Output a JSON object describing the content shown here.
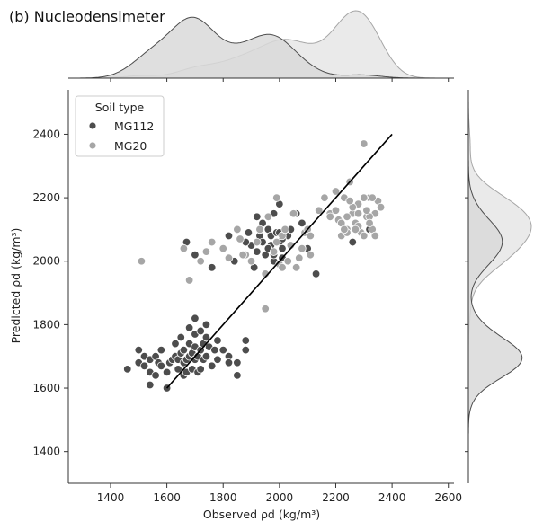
{
  "title": "(b) Nucleodensimeter",
  "chart_data": {
    "type": "scatter",
    "title": "(b) Nucleodensimeter",
    "xlabel": "Observed ρd (kg/m³)",
    "ylabel": "Predicted ρd (kg/m³)",
    "xlim": [
      1250,
      2620
    ],
    "ylim": [
      1300,
      2540
    ],
    "xticks": [
      "1400",
      "1600",
      "1800",
      "2000",
      "2200",
      "2400",
      "2600"
    ],
    "yticks": [
      "1400",
      "1600",
      "1800",
      "2000",
      "2200",
      "2400"
    ],
    "xtick_values": [
      1400,
      1600,
      1800,
      2000,
      2200,
      2400,
      2600
    ],
    "ytick_values": [
      1400,
      1600,
      1800,
      2000,
      2200,
      2400
    ],
    "grid": false,
    "legend": {
      "title": "Soil type",
      "placement": "top-left"
    },
    "fit_line": {
      "x": [
        1600,
        2400
      ],
      "y": [
        1600,
        2400
      ],
      "color": "#000000"
    },
    "marginals": "kde",
    "series": [
      {
        "name": "MG112",
        "color": "#4d4d4d",
        "x": [
          1460,
          1500,
          1500,
          1520,
          1520,
          1540,
          1540,
          1540,
          1560,
          1560,
          1570,
          1580,
          1580,
          1600,
          1600,
          1610,
          1620,
          1630,
          1630,
          1640,
          1640,
          1650,
          1650,
          1660,
          1660,
          1660,
          1670,
          1670,
          1680,
          1680,
          1680,
          1690,
          1690,
          1700,
          1700,
          1700,
          1700,
          1710,
          1710,
          1720,
          1720,
          1720,
          1730,
          1730,
          1740,
          1740,
          1740,
          1750,
          1760,
          1770,
          1780,
          1780,
          1800,
          1820,
          1820,
          1850,
          1850,
          1880,
          1880,
          1890,
          1900,
          1900,
          1910,
          1920,
          1930,
          1940,
          1950,
          1960,
          1970,
          1970,
          1980,
          1980,
          1990,
          2000,
          2000,
          2010,
          2010,
          2020,
          2030,
          2060,
          2080,
          2100,
          2130,
          1670,
          1700,
          1760,
          1820,
          1840,
          1880,
          1920,
          1940,
          1960,
          1980,
          2000,
          2010,
          2040,
          2080,
          2260,
          2320
        ],
        "y": [
          1660,
          1680,
          1720,
          1670,
          1700,
          1690,
          1650,
          1610,
          1700,
          1640,
          1680,
          1670,
          1720,
          1600,
          1650,
          1680,
          1690,
          1700,
          1740,
          1660,
          1690,
          1710,
          1760,
          1640,
          1680,
          1720,
          1650,
          1690,
          1700,
          1740,
          1790,
          1660,
          1710,
          1690,
          1730,
          1770,
          1820,
          1650,
          1700,
          1660,
          1720,
          1780,
          1690,
          1740,
          1700,
          1760,
          1800,
          1730,
          1670,
          1720,
          1690,
          1750,
          1720,
          1700,
          1680,
          1640,
          1680,
          1720,
          1750,
          2090,
          2050,
          2000,
          1980,
          2030,
          2080,
          2060,
          2020,
          2100,
          2080,
          2050,
          2000,
          2150,
          2090,
          2060,
          2180,
          2040,
          2010,
          2100,
          2080,
          2150,
          2120,
          2040,
          1960,
          2060,
          2020,
          1980,
          2080,
          2000,
          2060,
          2140,
          2120,
          2040,
          2020,
          2090,
          2070,
          2100,
          2040,
          2060,
          2100
        ],
        "note_series": ""
      },
      {
        "name": "MG20",
        "color": "#a6a6a6",
        "x": [
          1510,
          1660,
          1680,
          1720,
          1740,
          1760,
          1800,
          1820,
          1850,
          1860,
          1880,
          1900,
          1920,
          1930,
          1950,
          1960,
          1980,
          1990,
          2000,
          2010,
          2020,
          2030,
          2040,
          2050,
          2060,
          2080,
          2090,
          2100,
          2110,
          2140,
          2160,
          2180,
          2200,
          2210,
          2220,
          2230,
          2240,
          2250,
          2260,
          2270,
          2280,
          2290,
          2300,
          2310,
          2320,
          2330,
          2340,
          2350,
          2200,
          2220,
          2240,
          2260,
          2280,
          2300,
          2320,
          2340,
          2360,
          2240,
          2280,
          2320,
          2250,
          2270,
          2300,
          2330,
          1950,
          2010,
          2070,
          1870,
          1990,
          2110,
          2180,
          2230,
          2310
        ],
        "y": [
          2000,
          2040,
          1940,
          2000,
          2030,
          2060,
          2040,
          2010,
          2100,
          2070,
          2020,
          2000,
          2060,
          2100,
          1960,
          2140,
          2030,
          2200,
          1990,
          2080,
          2100,
          2000,
          2050,
          2150,
          1980,
          2040,
          2090,
          2100,
          2020,
          2160,
          2200,
          2150,
          2220,
          2130,
          2080,
          2200,
          2100,
          2250,
          2150,
          2120,
          2180,
          2090,
          2370,
          2140,
          2200,
          2100,
          2150,
          2190,
          2160,
          2120,
          2140,
          2170,
          2110,
          2200,
          2140,
          2080,
          2170,
          2090,
          2150,
          2120,
          2190,
          2100,
          2080,
          2200,
          1850,
          1980,
          2010,
          2020,
          2060,
          2080,
          2140,
          2100,
          2160
        ]
      }
    ]
  }
}
